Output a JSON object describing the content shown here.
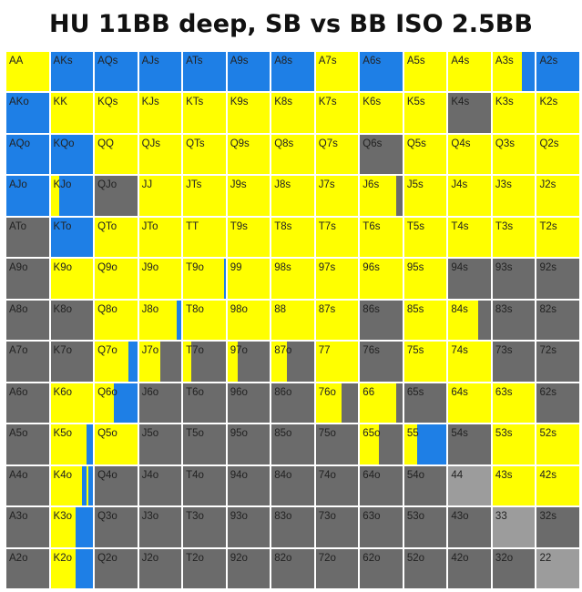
{
  "title": "HU 11BB deep, SB vs BB ISO 2.5BB",
  "colors": {
    "Y": "#ffff00",
    "B": "#1e7fe6",
    "G": "#6b6b6b",
    "L": "#9c9c9c",
    "divider": "#ffffff"
  },
  "chart_data": {
    "type": "heatmap",
    "title": "HU 11BB deep, SB vs BB ISO 2.5BB",
    "ranks": [
      "A",
      "K",
      "Q",
      "J",
      "T",
      "9",
      "8",
      "7",
      "6",
      "5",
      "4",
      "3",
      "2"
    ],
    "rows": [
      {
        "hands": [
          "AA",
          "AKs",
          "AQs",
          "AJs",
          "ATs",
          "A9s",
          "A8s",
          "A7s",
          "A6s",
          "A5s",
          "A4s",
          "A3s",
          "A2s"
        ],
        "colors": [
          "Y",
          "B",
          "B",
          "B",
          "B",
          "B",
          "B",
          "Y",
          "B",
          "Y",
          "Y",
          [
            [
              "Y",
              0.7
            ],
            [
              "B",
              0.3
            ]
          ],
          "B"
        ]
      },
      {
        "hands": [
          "AKo",
          "KK",
          "KQs",
          "KJs",
          "KTs",
          "K9s",
          "K8s",
          "K7s",
          "K6s",
          "K5s",
          "K4s",
          "K3s",
          "K2s"
        ],
        "colors": [
          "B",
          "Y",
          "Y",
          "Y",
          "Y",
          "Y",
          "Y",
          "Y",
          "Y",
          "Y",
          "G",
          "Y",
          "Y"
        ]
      },
      {
        "hands": [
          "AQo",
          "KQo",
          "QQ",
          "QJs",
          "QTs",
          "Q9s",
          "Q8s",
          "Q7s",
          "Q6s",
          "Q5s",
          "Q4s",
          "Q3s",
          "Q2s"
        ],
        "colors": [
          "B",
          "B",
          "Y",
          "Y",
          "Y",
          "Y",
          "Y",
          "Y",
          "G",
          "Y",
          "Y",
          "Y",
          "Y"
        ]
      },
      {
        "hands": [
          "AJo",
          "KJo",
          "QJo",
          "JJ",
          "JTs",
          "J9s",
          "J8s",
          "J7s",
          "J6s",
          "J5s",
          "J4s",
          "J3s",
          "J2s"
        ],
        "colors": [
          "B",
          [
            [
              "Y",
              0.2
            ],
            [
              "B",
              0.8
            ]
          ],
          "G",
          "Y",
          "Y",
          "Y",
          "Y",
          "Y",
          [
            [
              "Y",
              0.85
            ],
            [
              "G",
              0.15
            ]
          ],
          "Y",
          "Y",
          "Y",
          "Y"
        ]
      },
      {
        "hands": [
          "ATo",
          "KTo",
          "QTo",
          "JTo",
          "TT",
          "T9s",
          "T8s",
          "T7s",
          "T6s",
          "T5s",
          "T4s",
          "T3s",
          "T2s"
        ],
        "colors": [
          "G",
          "B",
          "Y",
          "Y",
          "Y",
          "Y",
          "Y",
          "Y",
          "Y",
          "Y",
          "Y",
          "Y",
          "Y"
        ]
      },
      {
        "hands": [
          "A9o",
          "K9o",
          "Q9o",
          "J9o",
          "T9o",
          "99",
          "98s",
          "97s",
          "96s",
          "95s",
          "94s",
          "93s",
          "92s"
        ],
        "colors": [
          "G",
          "Y",
          "Y",
          "Y",
          [
            [
              "Y",
              0.97
            ],
            [
              "B",
              0.03
            ]
          ],
          "Y",
          "Y",
          "Y",
          "Y",
          "Y",
          "G",
          "G",
          "G"
        ]
      },
      {
        "hands": [
          "A8o",
          "K8o",
          "Q8o",
          "J8o",
          "T8o",
          "98o",
          "88",
          "87s",
          "86s",
          "85s",
          "84s",
          "83s",
          "82s"
        ],
        "colors": [
          "G",
          "G",
          "Y",
          [
            [
              "Y",
              0.9
            ],
            [
              "B",
              0.1
            ]
          ],
          "Y",
          "Y",
          "Y",
          "Y",
          "G",
          "Y",
          [
            [
              "Y",
              0.7
            ],
            [
              "G",
              0.3
            ]
          ],
          "G",
          "G"
        ]
      },
      {
        "hands": [
          "A7o",
          "K7o",
          "Q7o",
          "J7o",
          "T7o",
          "97o",
          "87o",
          "77",
          "76s",
          "75s",
          "74s",
          "73s",
          "72s"
        ],
        "colors": [
          "G",
          "G",
          [
            [
              "Y",
              0.8
            ],
            [
              "B",
              0.2
            ]
          ],
          [
            [
              "Y",
              0.5
            ],
            [
              "G",
              0.5
            ]
          ],
          [
            [
              "Y",
              0.2
            ],
            [
              "G",
              0.8
            ]
          ],
          [
            [
              "Y",
              0.25
            ],
            [
              "G",
              0.75
            ]
          ],
          [
            [
              "Y",
              0.35
            ],
            [
              "G",
              0.65
            ]
          ],
          "Y",
          "G",
          "Y",
          "Y",
          "G",
          "G"
        ]
      },
      {
        "hands": [
          "A6o",
          "K6o",
          "Q6o",
          "J6o",
          "T6o",
          "96o",
          "86o",
          "76o",
          "66",
          "65s",
          "64s",
          "63s",
          "62s"
        ],
        "colors": [
          "G",
          "Y",
          [
            [
              "Y",
              0.45
            ],
            [
              "B",
              0.55
            ]
          ],
          "G",
          "G",
          "G",
          "G",
          [
            [
              "Y",
              0.6
            ],
            [
              "G",
              0.4
            ]
          ],
          [
            [
              "Y",
              0.85
            ],
            [
              "G",
              0.15
            ]
          ],
          "G",
          "Y",
          "Y",
          "G"
        ]
      },
      {
        "hands": [
          "A5o",
          "K5o",
          "Q5o",
          "J5o",
          "T5o",
          "95o",
          "85o",
          "75o",
          "65o",
          "55",
          "54s",
          "53s",
          "52s"
        ],
        "colors": [
          "G",
          [
            [
              "Y",
              0.85
            ],
            [
              "B",
              0.15
            ]
          ],
          "Y",
          "G",
          "G",
          "G",
          "G",
          "G",
          [
            [
              "Y",
              0.45
            ],
            [
              "G",
              0.55
            ]
          ],
          [
            [
              "Y",
              0.3
            ],
            [
              "B",
              0.7
            ]
          ],
          "G",
          "Y",
          "Y"
        ]
      },
      {
        "hands": [
          "A4o",
          "K4o",
          "Q4o",
          "J4o",
          "T4o",
          "94o",
          "84o",
          "74o",
          "64o",
          "54o",
          "44",
          "43s",
          "42s"
        ],
        "colors": [
          "G",
          [
            [
              "Y",
              0.75
            ],
            [
              "B",
              0.1
            ],
            [
              "Y",
              0.05
            ],
            [
              "B",
              0.1
            ]
          ],
          "G",
          "G",
          "G",
          "G",
          "G",
          "G",
          "G",
          "G",
          "L",
          "Y",
          "Y"
        ]
      },
      {
        "hands": [
          "A3o",
          "K3o",
          "Q3o",
          "J3o",
          "T3o",
          "93o",
          "83o",
          "73o",
          "63o",
          "53o",
          "43o",
          "33",
          "32s"
        ],
        "colors": [
          "G",
          [
            [
              "Y",
              0.6
            ],
            [
              "B",
              0.4
            ]
          ],
          "G",
          "G",
          "G",
          "G",
          "G",
          "G",
          "G",
          "G",
          "G",
          "L",
          "G"
        ]
      },
      {
        "hands": [
          "A2o",
          "K2o",
          "Q2o",
          "J2o",
          "T2o",
          "92o",
          "82o",
          "72o",
          "62o",
          "52o",
          "42o",
          "32o",
          "22"
        ],
        "colors": [
          "G",
          [
            [
              "Y",
              0.6
            ],
            [
              "B",
              0.4
            ]
          ],
          "G",
          "G",
          "G",
          "G",
          "G",
          "G",
          "G",
          "G",
          "G",
          "G",
          "L"
        ]
      }
    ]
  }
}
